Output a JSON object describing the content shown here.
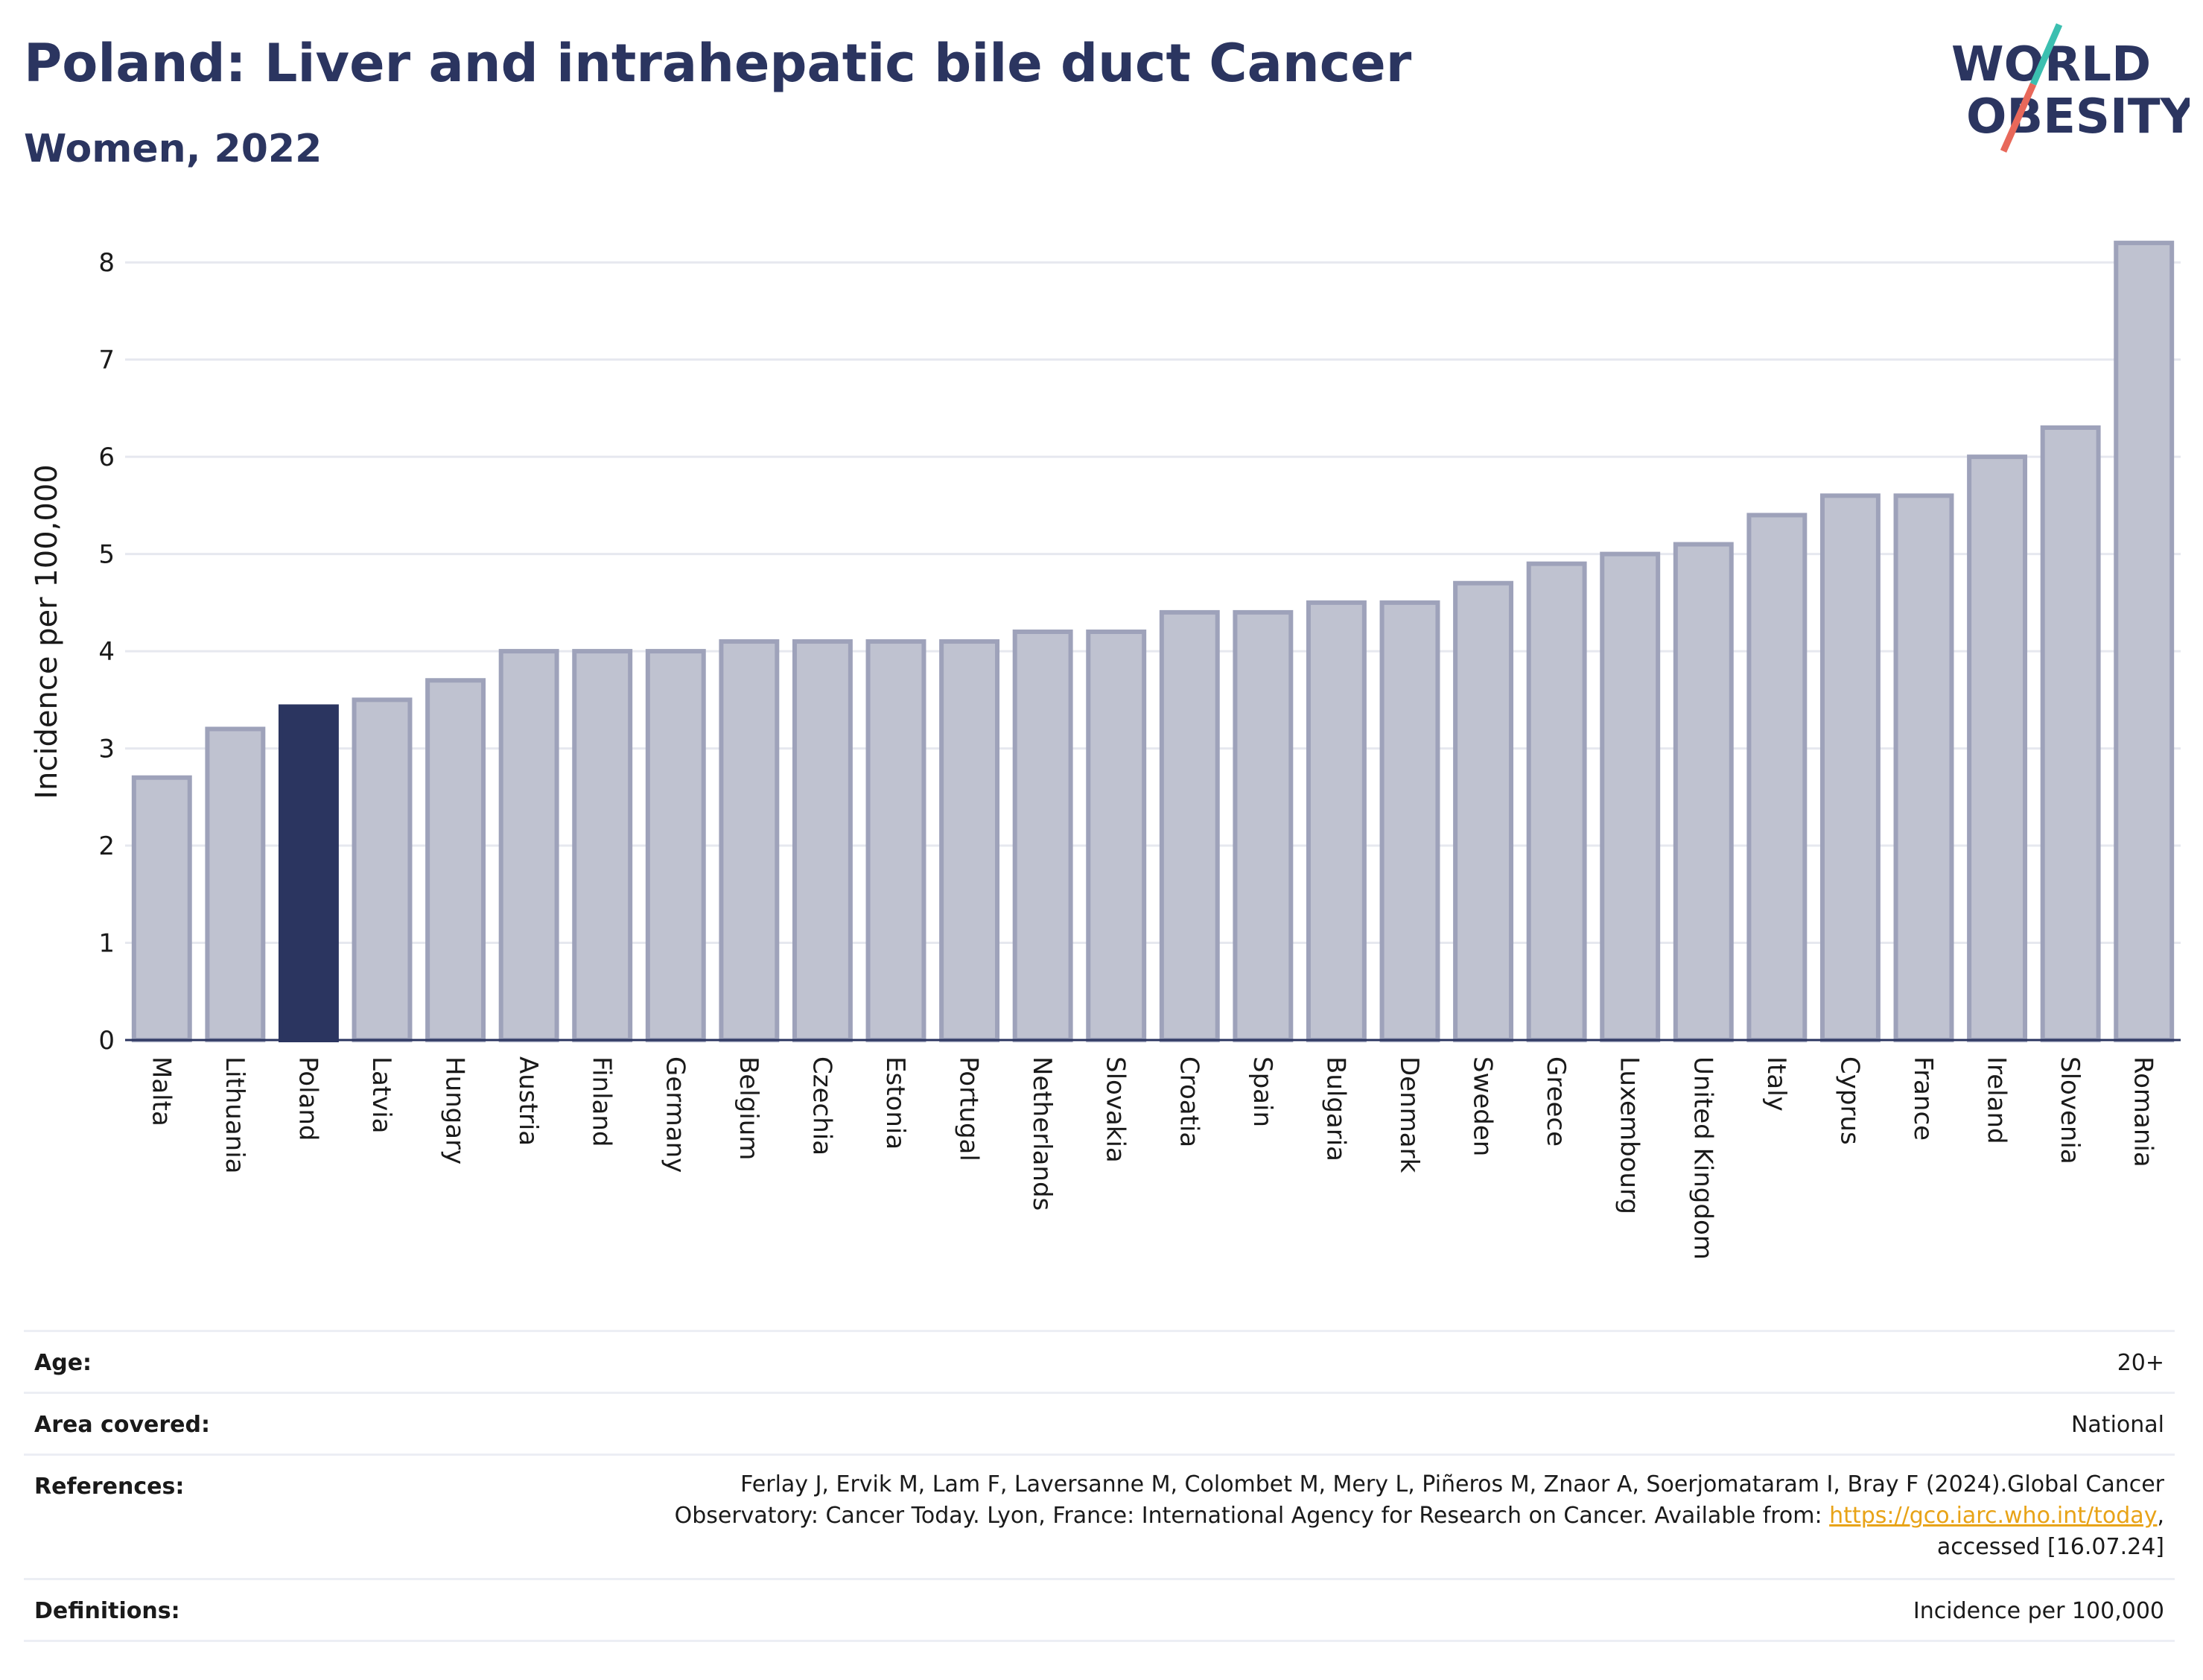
{
  "header": {
    "title": "Poland: Liver and intrahepatic bile duct Cancer",
    "subtitle": "Women, 2022"
  },
  "logo": {
    "line1": "WORLD",
    "line2": "OBESITY",
    "colors": {
      "text": "#2b3560",
      "slash_top": "#3bbfb0",
      "slash_bottom": "#e8685a"
    }
  },
  "colors": {
    "bar_fill": "#bfc2d0",
    "bar_stroke": "#9ea2ba",
    "highlight_fill": "#2b3560",
    "grid": "#e6e8ef",
    "axis_text": "#1a1a1a"
  },
  "chart_data": {
    "type": "bar",
    "ylabel": "Incidence per 100,000",
    "xlabel": "",
    "ylim": [
      0,
      8.4
    ],
    "yticks": [
      0,
      1,
      2,
      3,
      4,
      5,
      6,
      7,
      8
    ],
    "grid": true,
    "highlight": "Poland",
    "categories": [
      "Malta",
      "Lithuania",
      "Poland",
      "Latvia",
      "Hungary",
      "Austria",
      "Finland",
      "Germany",
      "Belgium",
      "Czechia",
      "Estonia",
      "Portugal",
      "Netherlands",
      "Slovakia",
      "Croatia",
      "Spain",
      "Bulgaria",
      "Denmark",
      "Sweden",
      "Greece",
      "Luxembourg",
      "United Kingdom",
      "Italy",
      "Cyprus",
      "France",
      "Ireland",
      "Slovenia",
      "Romania"
    ],
    "values": [
      2.7,
      3.2,
      3.43,
      3.5,
      3.7,
      4.0,
      4.0,
      4.0,
      4.1,
      4.1,
      4.1,
      4.1,
      4.2,
      4.2,
      4.4,
      4.4,
      4.5,
      4.5,
      4.7,
      4.9,
      5.0,
      5.1,
      5.4,
      5.6,
      5.6,
      6.0,
      6.3,
      8.2
    ]
  },
  "metadata": {
    "age_label": "Age:",
    "age_value": "20+",
    "area_label": "Area covered:",
    "area_value": "National",
    "references_label": "References:",
    "references_line1": "Ferlay J, Ervik M, Lam F, Laversanne M, Colombet M, Mery L, Piñeros M, Znaor A, Soerjomataram I, Bray F (2024).Global Cancer",
    "references_line2_text": "Observatory: Cancer Today. Lyon, France: International Agency for Research on Cancer. Available from: ",
    "references_link": "https://gco.iarc.who.int/today",
    "references_line2_end": ",",
    "references_line3": "accessed [16.07.24]",
    "definitions_label": "Definitions:",
    "definitions_value": "Incidence per 100,000"
  }
}
